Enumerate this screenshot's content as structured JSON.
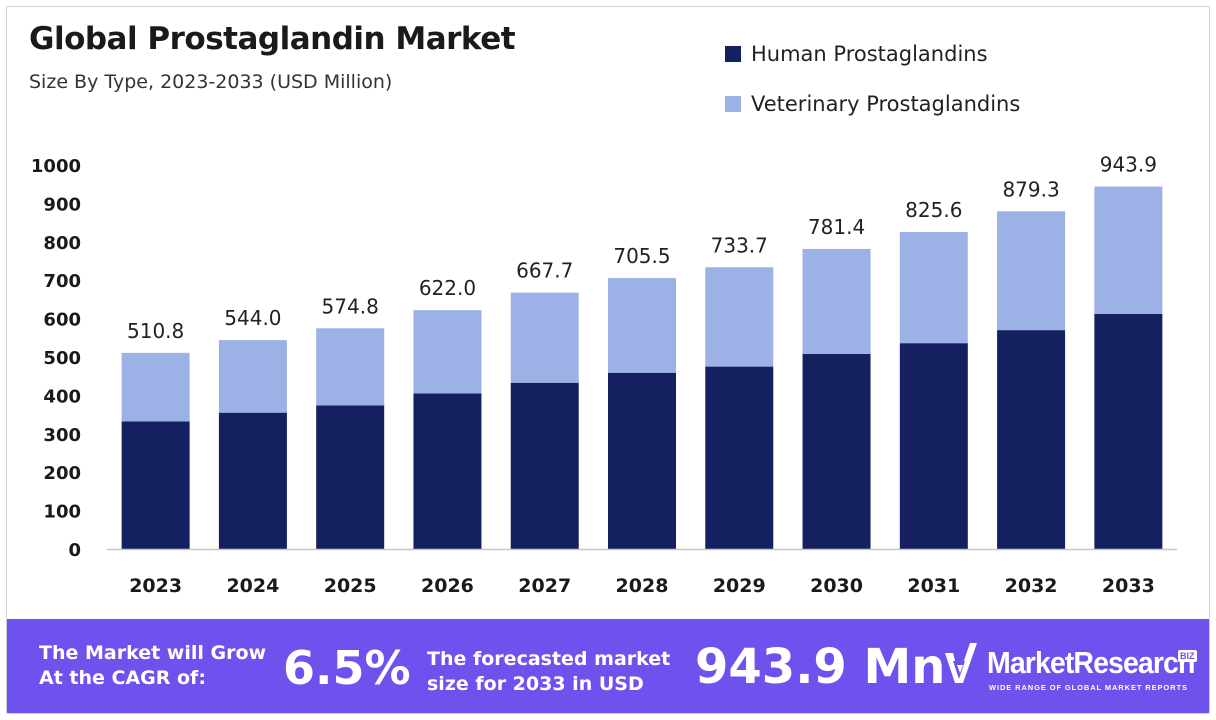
{
  "header": {
    "title": "Global Prostaglandin Market",
    "subtitle": "Size By Type, 2023-2033 (USD Million)"
  },
  "legend": [
    {
      "label": "Human Prostaglandins",
      "color": "#142060"
    },
    {
      "label": "Veterinary Prostaglandins",
      "color": "#9cb1e6"
    }
  ],
  "chart_data": {
    "type": "bar",
    "stacked": true,
    "title": "Global Prostaglandin Market",
    "subtitle": "Size By Type, 2023-2033 (USD Million)",
    "xlabel": "",
    "ylabel": "",
    "ylim": [
      0,
      1000
    ],
    "yticks": [
      0,
      100,
      200,
      300,
      400,
      500,
      600,
      700,
      800,
      900,
      1000
    ],
    "categories": [
      "2023",
      "2024",
      "2025",
      "2026",
      "2027",
      "2028",
      "2029",
      "2030",
      "2031",
      "2032",
      "2033"
    ],
    "series": [
      {
        "name": "Human Prostaglandins",
        "color": "#142060",
        "values": [
          332,
          355,
          374,
          405,
          433,
          459,
          475,
          508,
          536,
          570,
          612
        ]
      },
      {
        "name": "Veterinary Prostaglandins",
        "color": "#9cb1e6",
        "values": [
          178.8,
          189.0,
          200.8,
          217.0,
          234.7,
          246.5,
          258.7,
          273.4,
          289.6,
          309.3,
          331.9
        ]
      }
    ],
    "totals": [
      "510.8",
      "544.0",
      "574.8",
      "622.0",
      "667.7",
      "705.5",
      "733.7",
      "781.4",
      "825.6",
      "879.3",
      "943.9"
    ],
    "legend_position": "top-right",
    "grid": false
  },
  "banner": {
    "cagr_label": "The Market will Grow\nAt the CAGR of:",
    "cagr_value": "6.5%",
    "forecast_label": "The forecasted market\nsize for 2033 in USD",
    "forecast_value": "943.9 Mn",
    "brand_name": "MarketResearch",
    "brand_suffix": "BIZ",
    "brand_tagline": "WIDE RANGE OF GLOBAL MARKET REPORTS"
  }
}
